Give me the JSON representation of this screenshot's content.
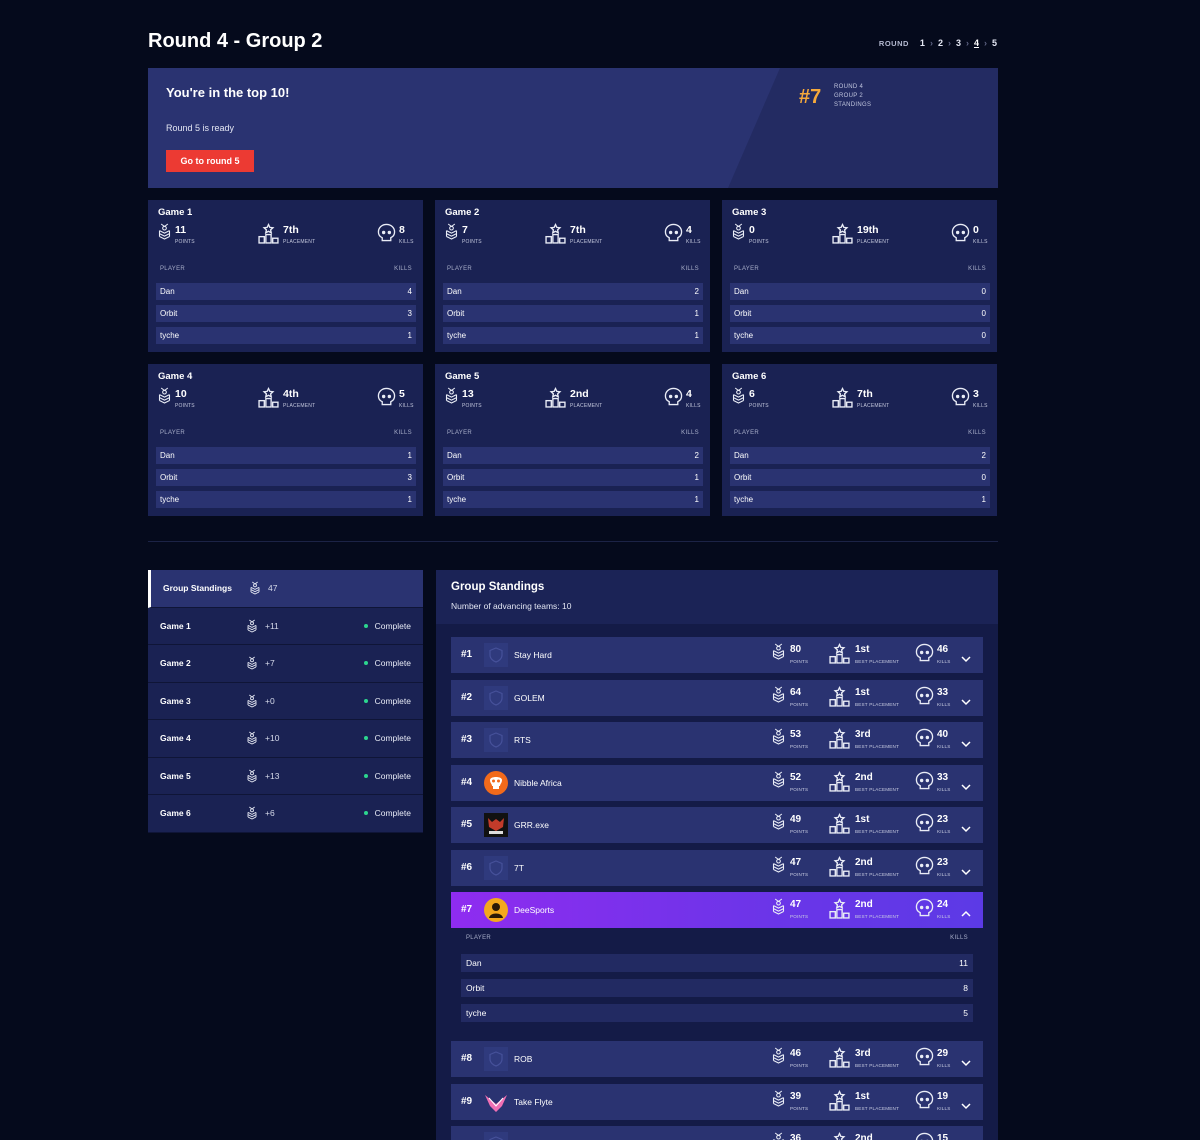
{
  "header": {
    "title": "Round 4 - Group 2",
    "round_label": "ROUND",
    "rounds": [
      "1",
      "2",
      "3",
      "4",
      "5"
    ],
    "active_round": "4"
  },
  "banner": {
    "title": "You're in the top 10!",
    "subtitle": "Round 5 is ready",
    "button": "Go to round 5",
    "rank": "#7",
    "rank_lines": [
      "ROUND 4",
      "GROUP 2",
      "STANDINGS"
    ]
  },
  "labels": {
    "points": "POINTS",
    "placement": "PLACEMENT",
    "kills": "KILLS",
    "best_placement": "BEST PLACEMENT",
    "player": "PLAYER",
    "kills_col": "KILLS"
  },
  "games": [
    {
      "title": "Game 1",
      "points": "11",
      "placement": "7th",
      "kills": "8",
      "players": [
        {
          "name": "Dan",
          "kills": "4"
        },
        {
          "name": "Orbit",
          "kills": "3"
        },
        {
          "name": "tyche",
          "kills": "1"
        }
      ]
    },
    {
      "title": "Game 2",
      "points": "7",
      "placement": "7th",
      "kills": "4",
      "players": [
        {
          "name": "Dan",
          "kills": "2"
        },
        {
          "name": "Orbit",
          "kills": "1"
        },
        {
          "name": "tyche",
          "kills": "1"
        }
      ]
    },
    {
      "title": "Game 3",
      "points": "0",
      "placement": "19th",
      "kills": "0",
      "players": [
        {
          "name": "Dan",
          "kills": "0"
        },
        {
          "name": "Orbit",
          "kills": "0"
        },
        {
          "name": "tyche",
          "kills": "0"
        }
      ]
    },
    {
      "title": "Game 4",
      "points": "10",
      "placement": "4th",
      "kills": "5",
      "players": [
        {
          "name": "Dan",
          "kills": "1"
        },
        {
          "name": "Orbit",
          "kills": "3"
        },
        {
          "name": "tyche",
          "kills": "1"
        }
      ]
    },
    {
      "title": "Game 5",
      "points": "13",
      "placement": "2nd",
      "kills": "4",
      "players": [
        {
          "name": "Dan",
          "kills": "2"
        },
        {
          "name": "Orbit",
          "kills": "1"
        },
        {
          "name": "tyche",
          "kills": "1"
        }
      ]
    },
    {
      "title": "Game 6",
      "points": "6",
      "placement": "7th",
      "kills": "3",
      "players": [
        {
          "name": "Dan",
          "kills": "2"
        },
        {
          "name": "Orbit",
          "kills": "0"
        },
        {
          "name": "tyche",
          "kills": "1"
        }
      ]
    }
  ],
  "side": [
    {
      "name": "Group Standings",
      "points": "47",
      "status": ""
    },
    {
      "name": "Game 1",
      "points": "+11",
      "status": "Complete"
    },
    {
      "name": "Game 2",
      "points": "+7",
      "status": "Complete"
    },
    {
      "name": "Game 3",
      "points": "+0",
      "status": "Complete"
    },
    {
      "name": "Game 4",
      "points": "+10",
      "status": "Complete"
    },
    {
      "name": "Game 5",
      "points": "+13",
      "status": "Complete"
    },
    {
      "name": "Game 6",
      "points": "+6",
      "status": "Complete"
    }
  ],
  "standings": {
    "title": "Group Standings",
    "subtitle": "Number of advancing teams: 10",
    "teams": [
      {
        "rank": "#1",
        "name": "Stay Hard",
        "points": "80",
        "best": "1st",
        "kills": "46",
        "logo": "shield-placeholder-icon"
      },
      {
        "rank": "#2",
        "name": "GOLEM",
        "points": "64",
        "best": "1st",
        "kills": "33",
        "logo": "shield-placeholder-icon"
      },
      {
        "rank": "#3",
        "name": "RTS",
        "points": "53",
        "best": "3rd",
        "kills": "40",
        "logo": "shield-placeholder-icon"
      },
      {
        "rank": "#4",
        "name": "Nibble Africa",
        "points": "52",
        "best": "2nd",
        "kills": "33",
        "logo": "orange-skull-logo"
      },
      {
        "rank": "#5",
        "name": "GRR.exe",
        "points": "49",
        "best": "1st",
        "kills": "23",
        "logo": "grr-exe-logo"
      },
      {
        "rank": "#6",
        "name": "7T",
        "points": "47",
        "best": "2nd",
        "kills": "23",
        "logo": "shield-placeholder-icon"
      },
      {
        "rank": "#7",
        "name": "DeeSports",
        "points": "47",
        "best": "2nd",
        "kills": "24",
        "logo": "deesports-logo"
      },
      {
        "rank": "#8",
        "name": "ROB",
        "points": "46",
        "best": "3rd",
        "kills": "29",
        "logo": "shield-placeholder-icon"
      },
      {
        "rank": "#9",
        "name": "Take Flyte",
        "points": "39",
        "best": "1st",
        "kills": "19",
        "logo": "pink-wings-logo"
      },
      {
        "rank": "",
        "name": "",
        "points": "36",
        "best": "2nd",
        "kills": "15",
        "logo": "shield-placeholder-icon"
      }
    ],
    "expanded_players": [
      {
        "name": "Dan",
        "kills": "11"
      },
      {
        "name": "Orbit",
        "kills": "8"
      },
      {
        "name": "tyche",
        "kills": "5"
      }
    ]
  },
  "colors": {
    "accent_rank": "#f6a93b",
    "button": "#ec3a33",
    "highlight_start": "#8f2cf0",
    "highlight_end": "#5c3ae6",
    "complete_dot": "#2cd68f"
  }
}
